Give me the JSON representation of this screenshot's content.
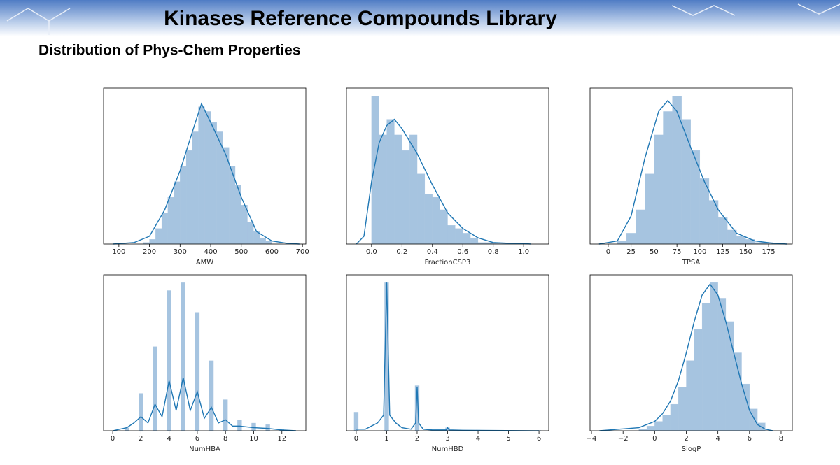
{
  "header": {
    "title": "Kinases Reference Compounds Library",
    "subtitle": "Distribution of Phys-Chem Properties"
  },
  "chart_data": [
    {
      "type": "histogram",
      "xlabel": "AMW",
      "color": "#a6c4e0",
      "line_color": "#1f77b4",
      "bins": [
        180,
        200,
        220,
        240,
        260,
        280,
        300,
        320,
        340,
        360,
        380,
        400,
        420,
        440,
        460,
        480,
        500,
        520,
        540,
        560,
        580,
        600
      ],
      "values": [
        1,
        3,
        10,
        20,
        30,
        40,
        50,
        60,
        72,
        88,
        85,
        78,
        72,
        62,
        50,
        38,
        25,
        14,
        8,
        4,
        2
      ],
      "kde_x": [
        80,
        150,
        200,
        250,
        300,
        350,
        370,
        400,
        450,
        500,
        550,
        600,
        650,
        690
      ],
      "kde_y": [
        0,
        1,
        5,
        22,
        47,
        78,
        90,
        78,
        57,
        30,
        8,
        2,
        0.5,
        0
      ],
      "xlim": [
        50,
        711
      ],
      "ylim": [
        0,
        100
      ],
      "xticks": [
        100,
        200,
        300,
        400,
        500,
        600,
        700
      ]
    },
    {
      "type": "histogram",
      "xlabel": "FractionCSP3",
      "color": "#a6c4e0",
      "line_color": "#1f77b4",
      "bins": [
        0,
        0.05,
        0.1,
        0.15,
        0.2,
        0.25,
        0.3,
        0.35,
        0.4,
        0.45,
        0.5,
        0.55,
        0.6,
        0.65,
        0.7,
        0.75,
        0.8,
        0.85,
        0.9,
        0.95,
        1.0
      ],
      "values": [
        95,
        70,
        80,
        70,
        60,
        70,
        45,
        32,
        30,
        22,
        12,
        10,
        7,
        4,
        1,
        1,
        0.5,
        0.5,
        0.5,
        0.3
      ],
      "kde_x": [
        -0.1,
        -0.05,
        0,
        0.05,
        0.1,
        0.15,
        0.2,
        0.3,
        0.4,
        0.5,
        0.6,
        0.7,
        0.8,
        0.9,
        1.0,
        1.05
      ],
      "kde_y": [
        0,
        5,
        40,
        65,
        76,
        80,
        74,
        58,
        38,
        20,
        10,
        4,
        1,
        0.5,
        0.3,
        0
      ],
      "xlim": [
        -0.165,
        1.165
      ],
      "ylim": [
        0,
        100
      ],
      "xticks": [
        {
          "value": 0,
          "label": "0.0"
        },
        0.2,
        0.4,
        0.6,
        0.8,
        {
          "value": 1,
          "label": "1.0"
        }
      ]
    },
    {
      "type": "histogram",
      "xlabel": "TPSA",
      "color": "#a6c4e0",
      "line_color": "#1f77b4",
      "bins": [
        10,
        20,
        30,
        40,
        50,
        60,
        70,
        80,
        90,
        100,
        110,
        120,
        130,
        140,
        150,
        160,
        170,
        180
      ],
      "values": [
        2,
        7,
        22,
        45,
        70,
        85,
        95,
        80,
        60,
        42,
        28,
        17,
        9,
        5,
        3,
        1,
        1
      ],
      "kde_x": [
        -10,
        10,
        25,
        40,
        55,
        65,
        75,
        90,
        105,
        120,
        140,
        160,
        180,
        195
      ],
      "kde_y": [
        0,
        2,
        18,
        55,
        85,
        92,
        85,
        62,
        40,
        22,
        7,
        2,
        0.5,
        0
      ],
      "xlim": [
        -19.8,
        200.9
      ],
      "ylim": [
        0,
        100
      ],
      "xticks": [
        0,
        25,
        50,
        75,
        100,
        125,
        150,
        175
      ]
    },
    {
      "type": "bar",
      "xlabel": "NumHBA",
      "color": "#a6c4e0",
      "line_color": "#1f77b4",
      "x": [
        1,
        2,
        3,
        4,
        5,
        6,
        7,
        8,
        9,
        10,
        11,
        12
      ],
      "values": [
        2,
        24,
        54,
        90,
        95,
        76,
        45,
        20,
        7,
        5,
        4,
        1
      ],
      "kde_x": [
        0,
        1,
        1.5,
        2,
        2.5,
        3,
        3.5,
        4,
        4.5,
        5,
        5.5,
        6,
        6.5,
        7,
        7.5,
        8,
        8.5,
        9,
        10,
        11,
        12,
        13
      ],
      "kde_y": [
        0,
        2,
        5,
        9,
        5,
        17,
        9,
        32,
        13,
        34,
        13,
        25,
        8,
        15,
        5,
        7,
        3,
        3,
        2,
        1.5,
        0.5,
        0
      ],
      "xlim": [
        -0.65,
        13.7
      ],
      "ylim": [
        0,
        100
      ],
      "xticks": [
        0,
        2,
        4,
        6,
        8,
        10,
        12
      ]
    },
    {
      "type": "bar",
      "xlabel": "NumHBD",
      "color": "#a6c4e0",
      "line_color": "#1f77b4",
      "x": [
        0,
        1,
        2,
        3,
        4,
        5,
        6
      ],
      "values": [
        12,
        95,
        29,
        2,
        0.5,
        0.3,
        0.3
      ],
      "kde_x": [
        0,
        0.3,
        0.5,
        0.7,
        0.9,
        1,
        1.1,
        1.3,
        1.5,
        1.8,
        1.95,
        2,
        2.05,
        2.2,
        2.5,
        2.95,
        3,
        3.05,
        3.5,
        6
      ],
      "kde_y": [
        1,
        1,
        3,
        5,
        10,
        95,
        10,
        5,
        2,
        1,
        5,
        28,
        5,
        1,
        0.5,
        0.5,
        2,
        0.5,
        0.3,
        0
      ],
      "xlim": [
        -0.32,
        6.32
      ],
      "ylim": [
        0,
        100
      ],
      "xticks": [
        0,
        1,
        2,
        3,
        4,
        5,
        6
      ]
    },
    {
      "type": "histogram",
      "xlabel": "SlogP",
      "color": "#a6c4e0",
      "line_color": "#1f77b4",
      "bins": [
        -1,
        -0.5,
        0,
        0.5,
        1,
        1.5,
        2,
        2.5,
        3,
        3.5,
        4,
        4.5,
        5,
        5.5,
        6,
        6.5,
        7
      ],
      "values": [
        1,
        3,
        6,
        10,
        17,
        28,
        45,
        65,
        82,
        95,
        85,
        70,
        50,
        30,
        14,
        5
      ],
      "kde_x": [
        -3.5,
        -1,
        0,
        0.5,
        1,
        1.5,
        2,
        2.5,
        3,
        3.5,
        4,
        4.5,
        5,
        5.5,
        6,
        6.5,
        7,
        7.5
      ],
      "kde_y": [
        0,
        2,
        6,
        11,
        19,
        32,
        50,
        70,
        87,
        94,
        87,
        70,
        50,
        30,
        13,
        4,
        1,
        0
      ],
      "xlim": [
        -4.09,
        8.71
      ],
      "ylim": [
        0,
        100
      ],
      "xticks": [
        {
          "value": -4,
          "label": "−4"
        },
        {
          "value": -2,
          "label": "−2"
        },
        0,
        2,
        4,
        6,
        8
      ]
    }
  ]
}
